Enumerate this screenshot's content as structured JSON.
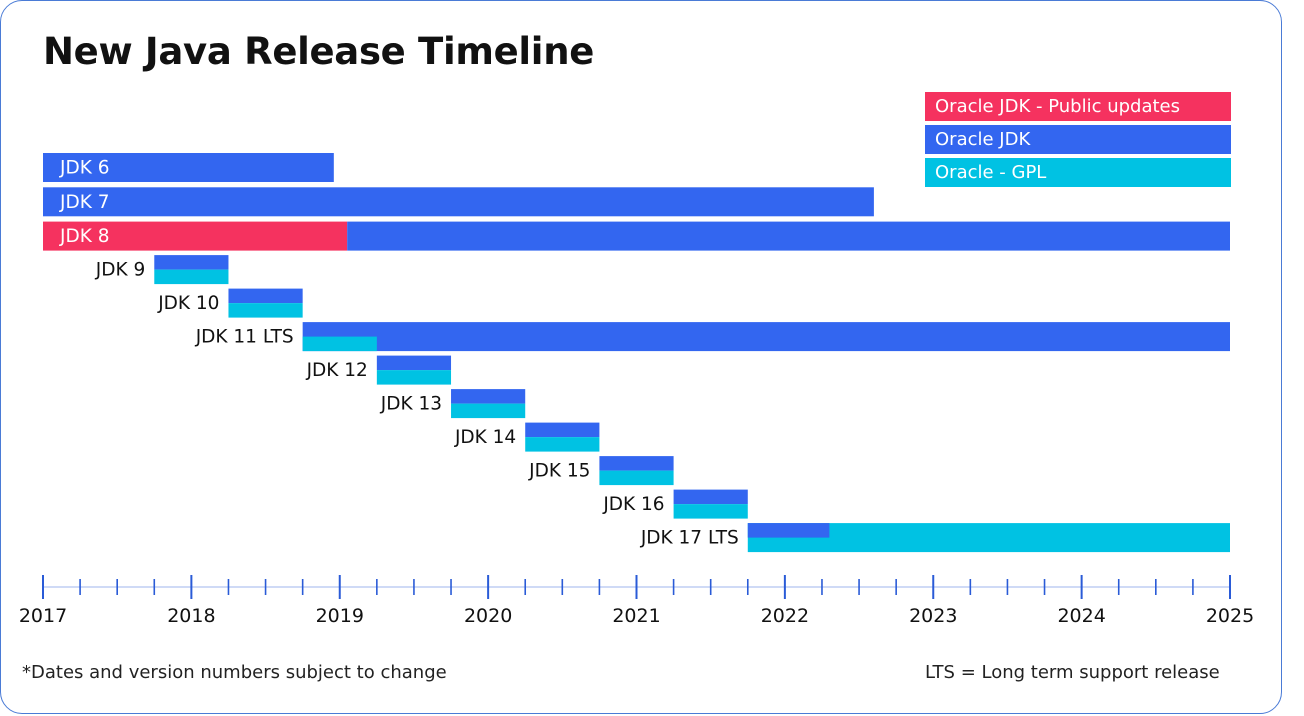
{
  "title": "New Java Release Timeline",
  "colors": {
    "public_updates": "#f5325f",
    "oracle_jdk": "#3366f0",
    "gpl": "#00c2e3",
    "axis": "#2a5bd7",
    "text": "#111111"
  },
  "legend": [
    {
      "label": "Oracle JDK - Public updates",
      "color": "#f5325f"
    },
    {
      "label": "Oracle JDK",
      "color": "#3366f0"
    },
    {
      "label": "Oracle - GPL",
      "color": "#00c2e3"
    }
  ],
  "footnote": "*Dates and version numbers subject to change",
  "lts_note": "LTS = Long term support release",
  "chart_data": {
    "type": "bar",
    "orientation": "horizontal-timeline",
    "xlim": [
      2017.0,
      2025.0
    ],
    "x_ticks": [
      2017,
      2018,
      2019,
      2020,
      2021,
      2022,
      2023,
      2024,
      2025
    ],
    "x_minor_tick_step": 0.25,
    "legend_position": "top-right",
    "releases": [
      {
        "label": "JDK 6",
        "label_inside": true,
        "segments": [
          {
            "kind": "oracle_jdk",
            "start": 2017.0,
            "end": 2018.96
          }
        ]
      },
      {
        "label": "JDK 7",
        "label_inside": true,
        "segments": [
          {
            "kind": "oracle_jdk",
            "start": 2017.0,
            "end": 2022.6
          }
        ]
      },
      {
        "label": "JDK 8",
        "label_inside": true,
        "segments": [
          {
            "kind": "public_updates",
            "start": 2017.0,
            "end": 2019.05
          },
          {
            "kind": "oracle_jdk",
            "start": 2019.05,
            "end": 2025.0
          }
        ]
      },
      {
        "label": "JDK 9",
        "label_inside": false,
        "segments": [
          {
            "kind": "oracle_jdk",
            "start": 2017.75,
            "end": 2018.25,
            "half": "top"
          },
          {
            "kind": "gpl",
            "start": 2017.75,
            "end": 2018.25,
            "half": "bottom"
          }
        ]
      },
      {
        "label": "JDK 10",
        "label_inside": false,
        "segments": [
          {
            "kind": "oracle_jdk",
            "start": 2018.25,
            "end": 2018.75,
            "half": "top"
          },
          {
            "kind": "gpl",
            "start": 2018.25,
            "end": 2018.75,
            "half": "bottom"
          }
        ]
      },
      {
        "label": "JDK 11 LTS",
        "label_inside": false,
        "segments": [
          {
            "kind": "oracle_jdk",
            "start": 2018.75,
            "end": 2025.0,
            "half": "full"
          },
          {
            "kind": "gpl",
            "start": 2018.75,
            "end": 2019.25,
            "half": "bottom"
          }
        ]
      },
      {
        "label": "JDK 12",
        "label_inside": false,
        "segments": [
          {
            "kind": "oracle_jdk",
            "start": 2019.25,
            "end": 2019.75,
            "half": "top"
          },
          {
            "kind": "gpl",
            "start": 2019.25,
            "end": 2019.75,
            "half": "bottom"
          }
        ]
      },
      {
        "label": "JDK 13",
        "label_inside": false,
        "segments": [
          {
            "kind": "oracle_jdk",
            "start": 2019.75,
            "end": 2020.25,
            "half": "top"
          },
          {
            "kind": "gpl",
            "start": 2019.75,
            "end": 2020.25,
            "half": "bottom"
          }
        ]
      },
      {
        "label": "JDK 14",
        "label_inside": false,
        "segments": [
          {
            "kind": "oracle_jdk",
            "start": 2020.25,
            "end": 2020.75,
            "half": "top"
          },
          {
            "kind": "gpl",
            "start": 2020.25,
            "end": 2020.75,
            "half": "bottom"
          }
        ]
      },
      {
        "label": "JDK 15",
        "label_inside": false,
        "segments": [
          {
            "kind": "oracle_jdk",
            "start": 2020.75,
            "end": 2021.25,
            "half": "top"
          },
          {
            "kind": "gpl",
            "start": 2020.75,
            "end": 2021.25,
            "half": "bottom"
          }
        ]
      },
      {
        "label": "JDK 16",
        "label_inside": false,
        "segments": [
          {
            "kind": "oracle_jdk",
            "start": 2021.25,
            "end": 2021.75,
            "half": "top"
          },
          {
            "kind": "gpl",
            "start": 2021.25,
            "end": 2021.75,
            "half": "bottom"
          }
        ]
      },
      {
        "label": "JDK 17 LTS",
        "label_inside": false,
        "segments": [
          {
            "kind": "gpl",
            "start": 2021.75,
            "end": 2025.0,
            "half": "full"
          },
          {
            "kind": "oracle_jdk",
            "start": 2021.75,
            "end": 2022.3,
            "half": "top"
          }
        ]
      }
    ]
  }
}
